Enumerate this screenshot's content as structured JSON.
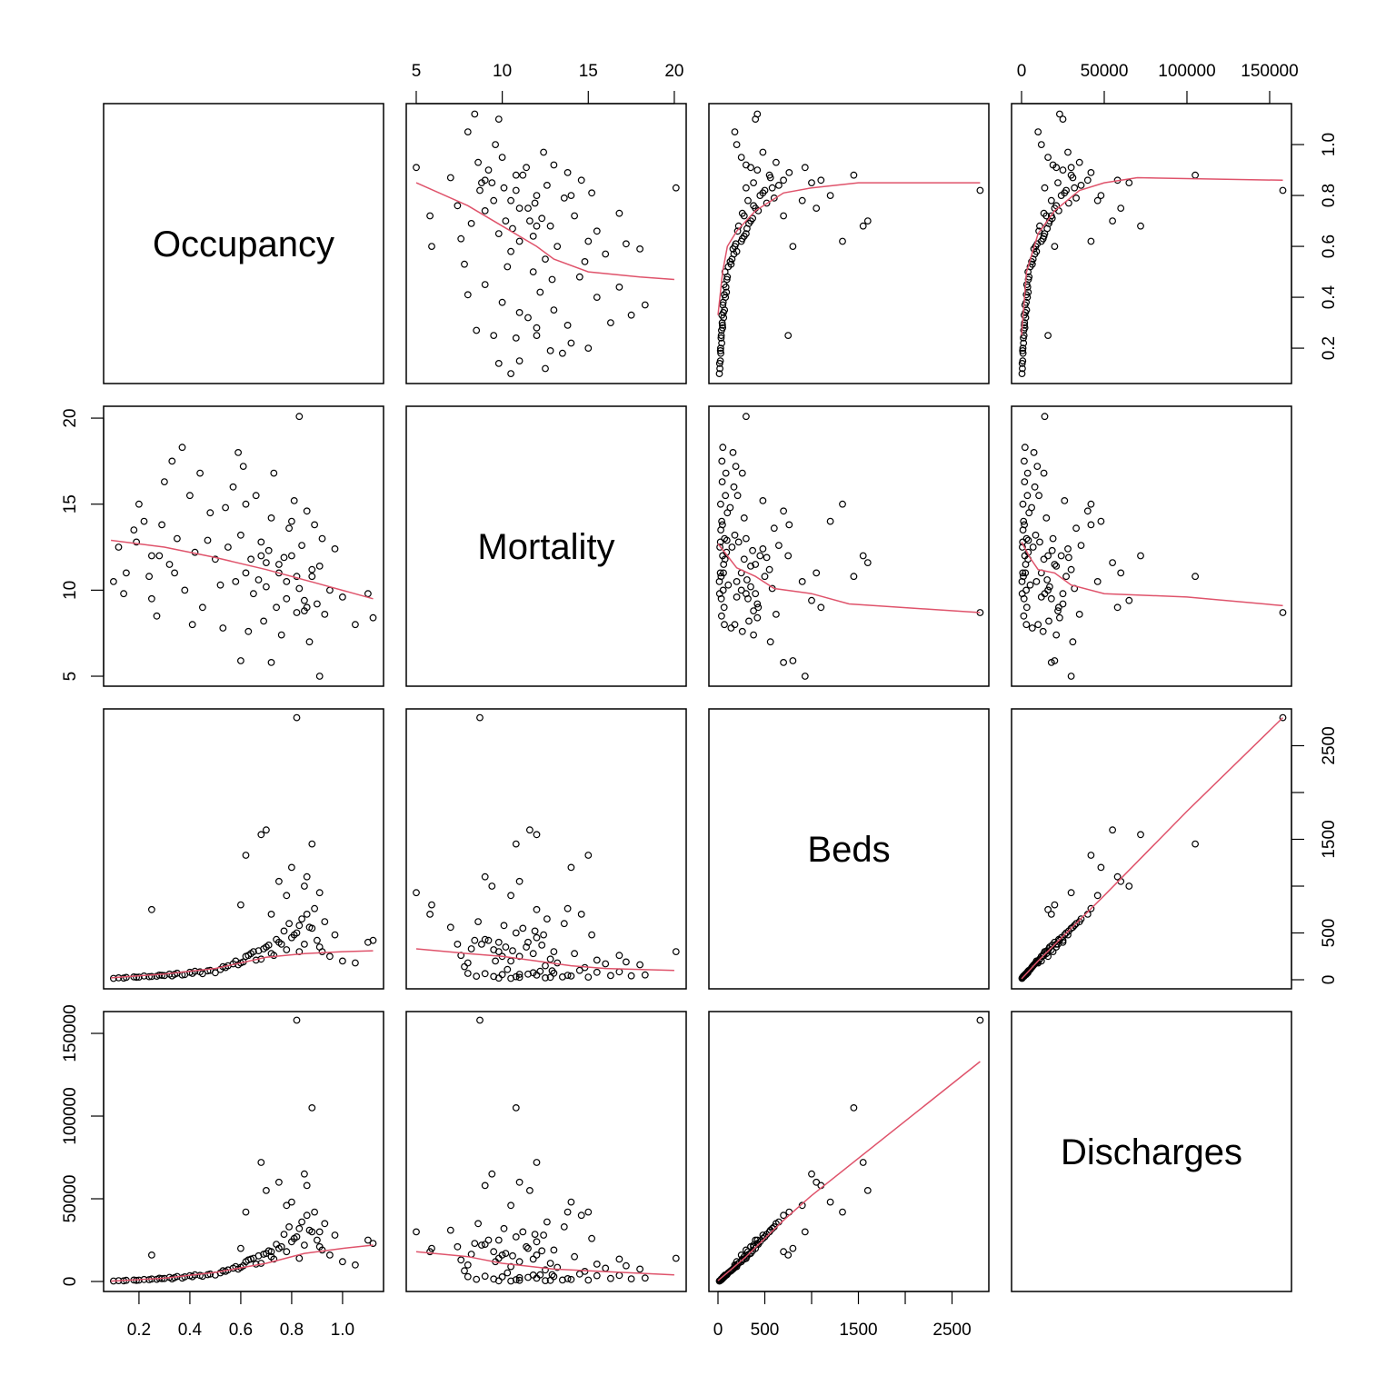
{
  "chart_data": {
    "type": "scatter",
    "title": "",
    "variables": [
      "Occupancy",
      "Mortality",
      "Beds",
      "Discharges"
    ],
    "ranges": [
      [
        0.061,
        1.161
      ],
      [
        4.42,
        20.69
      ],
      [
        -97,
        2893
      ],
      [
        -6044,
        163200
      ]
    ],
    "ticks": [
      {
        "values": [
          0.2,
          0.4,
          0.6,
          0.8,
          1.0
        ],
        "labels": [
          "0.2",
          "0.4",
          "0.6",
          "0.8",
          "1.0"
        ]
      },
      {
        "values": [
          5,
          10,
          15,
          20
        ],
        "labels": [
          "5",
          "10",
          "15",
          "20"
        ]
      },
      {
        "values": [
          0,
          500,
          1000,
          1500,
          2000,
          2500
        ],
        "labels": [
          "0",
          "500",
          "",
          "1500",
          "",
          "2500"
        ]
      },
      {
        "values": [
          0,
          50000,
          100000,
          150000
        ],
        "labels": [
          "0",
          "50000",
          "100000",
          "150000"
        ]
      }
    ],
    "point_color": "#000000",
    "smooth_color": "#DF536B",
    "records_columns": [
      "Occupancy",
      "Mortality",
      "Beds",
      "Discharges"
    ],
    "records": [
      [
        0.12,
        12.5,
        20,
        500
      ],
      [
        0.15,
        11.0,
        25,
        700
      ],
      [
        0.18,
        13.5,
        30,
        900
      ],
      [
        0.1,
        10.5,
        15,
        300
      ],
      [
        0.22,
        14.0,
        40,
        1200
      ],
      [
        0.25,
        9.5,
        35,
        1500
      ],
      [
        0.28,
        12.0,
        50,
        2000
      ],
      [
        0.3,
        16.3,
        45,
        1800
      ],
      [
        0.32,
        11.5,
        60,
        2500
      ],
      [
        0.35,
        13.0,
        70,
        3000
      ],
      [
        0.38,
        10.0,
        55,
        2800
      ],
      [
        0.4,
        15.5,
        80,
        3500
      ],
      [
        0.42,
        12.2,
        90,
        4000
      ],
      [
        0.45,
        9.0,
        65,
        3200
      ],
      [
        0.48,
        14.5,
        100,
        4500
      ],
      [
        0.5,
        11.8,
        75,
        3900
      ],
      [
        0.2,
        15.0,
        28,
        800
      ],
      [
        0.27,
        8.5,
        38,
        1300
      ],
      [
        0.33,
        17.5,
        42,
        1600
      ],
      [
        0.37,
        18.3,
        52,
        2100
      ],
      [
        0.14,
        9.8,
        18,
        400
      ],
      [
        0.19,
        12.8,
        26,
        650
      ],
      [
        0.24,
        10.8,
        33,
        1100
      ],
      [
        0.29,
        13.8,
        48,
        1700
      ],
      [
        0.34,
        11.0,
        58,
        2300
      ],
      [
        0.41,
        8.0,
        68,
        2900
      ],
      [
        0.44,
        16.8,
        85,
        3700
      ],
      [
        0.47,
        12.9,
        95,
        4100
      ],
      [
        0.52,
        10.3,
        110,
        5200
      ],
      [
        0.54,
        14.8,
        130,
        6100
      ],
      [
        0.55,
        12.5,
        150,
        7000
      ],
      [
        0.58,
        10.5,
        200,
        9000
      ],
      [
        0.6,
        13.2,
        180,
        8500
      ],
      [
        0.62,
        11.0,
        250,
        12000
      ],
      [
        0.65,
        9.8,
        300,
        14000
      ],
      [
        0.68,
        12.8,
        220,
        11000
      ],
      [
        0.7,
        10.2,
        350,
        17000
      ],
      [
        0.72,
        14.2,
        280,
        15000
      ],
      [
        0.75,
        11.5,
        400,
        20000
      ],
      [
        0.78,
        9.5,
        320,
        18000
      ],
      [
        0.8,
        12.0,
        450,
        24000
      ],
      [
        0.82,
        10.8,
        500,
        27000
      ],
      [
        0.85,
        8.8,
        380,
        22000
      ],
      [
        0.88,
        11.2,
        550,
        30000
      ],
      [
        0.9,
        9.2,
        420,
        25000
      ],
      [
        0.92,
        13.0,
        300,
        19000
      ],
      [
        0.95,
        10.0,
        250,
        16000
      ],
      [
        1.0,
        9.6,
        200,
        12000
      ],
      [
        1.05,
        8.0,
        180,
        10000
      ],
      [
        1.1,
        9.8,
        400,
        25000
      ],
      [
        1.12,
        8.4,
        420,
        23000
      ],
      [
        0.57,
        16.0,
        170,
        8000
      ],
      [
        0.63,
        7.6,
        260,
        13000
      ],
      [
        0.66,
        15.5,
        210,
        10500
      ],
      [
        0.69,
        8.2,
        330,
        16500
      ],
      [
        0.73,
        16.8,
        260,
        13500
      ],
      [
        0.76,
        7.4,
        380,
        21000
      ],
      [
        0.79,
        13.6,
        600,
        33000
      ],
      [
        0.81,
        15.2,
        480,
        26000
      ],
      [
        0.84,
        12.6,
        650,
        36000
      ],
      [
        0.86,
        14.6,
        700,
        40000
      ],
      [
        0.87,
        7.0,
        560,
        31000
      ],
      [
        0.89,
        13.8,
        760,
        42000
      ],
      [
        0.93,
        8.6,
        620,
        35000
      ],
      [
        0.97,
        12.4,
        480,
        28000
      ],
      [
        0.53,
        7.8,
        140,
        6500
      ],
      [
        0.59,
        18.0,
        160,
        7500
      ],
      [
        0.61,
        17.2,
        190,
        9500
      ],
      [
        0.64,
        11.8,
        280,
        13500
      ],
      [
        0.67,
        10.6,
        310,
        15500
      ],
      [
        0.71,
        12.3,
        370,
        18500
      ],
      [
        0.74,
        9.0,
        430,
        22500
      ],
      [
        0.77,
        11.9,
        520,
        28500
      ],
      [
        0.83,
        10.1,
        580,
        32000
      ],
      [
        0.91,
        11.4,
        350,
        21000
      ],
      [
        0.7,
        11.6,
        1600,
        55000
      ],
      [
        0.68,
        12.0,
        1550,
        72000
      ],
      [
        0.82,
        8.7,
        2800,
        158000
      ],
      [
        0.88,
        10.8,
        1450,
        105000
      ],
      [
        0.83,
        20.1,
        300,
        14000
      ],
      [
        0.91,
        5.0,
        930,
        30000
      ],
      [
        0.62,
        15.0,
        1330,
        42000
      ],
      [
        0.75,
        11.0,
        1050,
        60000
      ],
      [
        0.85,
        9.4,
        1000,
        65000
      ],
      [
        0.8,
        14.0,
        1200,
        48000
      ],
      [
        0.6,
        5.9,
        800,
        20000
      ],
      [
        0.72,
        5.8,
        700,
        18000
      ],
      [
        0.25,
        12.0,
        750,
        16000
      ],
      [
        0.78,
        10.5,
        900,
        46000
      ],
      [
        0.86,
        9.0,
        1100,
        58000
      ]
    ],
    "smooths": [
      {
        "x": "Mortality",
        "y": "Occupancy",
        "points": [
          [
            5,
            0.85
          ],
          [
            8,
            0.76
          ],
          [
            10,
            0.68
          ],
          [
            12,
            0.6
          ],
          [
            13,
            0.55
          ],
          [
            15,
            0.5
          ],
          [
            18,
            0.48
          ],
          [
            20,
            0.47
          ]
        ]
      },
      {
        "x": "Beds",
        "y": "Occupancy",
        "points": [
          [
            0,
            0.33
          ],
          [
            50,
            0.5
          ],
          [
            100,
            0.6
          ],
          [
            200,
            0.66
          ],
          [
            400,
            0.74
          ],
          [
            700,
            0.81
          ],
          [
            1000,
            0.83
          ],
          [
            1500,
            0.85
          ],
          [
            2800,
            0.85
          ]
        ]
      },
      {
        "x": "Discharges",
        "y": "Occupancy",
        "points": [
          [
            0,
            0.25
          ],
          [
            3000,
            0.5
          ],
          [
            10000,
            0.65
          ],
          [
            20000,
            0.74
          ],
          [
            35000,
            0.82
          ],
          [
            50000,
            0.85
          ],
          [
            70000,
            0.87
          ],
          [
            158000,
            0.86
          ]
        ]
      },
      {
        "x": "Occupancy",
        "y": "Mortality",
        "points": [
          [
            0.09,
            12.9
          ],
          [
            0.3,
            12.5
          ],
          [
            0.5,
            11.9
          ],
          [
            0.7,
            11.2
          ],
          [
            0.9,
            10.4
          ],
          [
            1.12,
            9.5
          ]
        ]
      },
      {
        "x": "Beds",
        "y": "Mortality",
        "points": [
          [
            0,
            12.7
          ],
          [
            100,
            12.0
          ],
          [
            200,
            11.3
          ],
          [
            400,
            10.8
          ],
          [
            600,
            10.1
          ],
          [
            1000,
            9.8
          ],
          [
            1400,
            9.2
          ],
          [
            2800,
            8.7
          ]
        ]
      },
      {
        "x": "Discharges",
        "y": "Mortality",
        "points": [
          [
            0,
            12.8
          ],
          [
            5000,
            11.9
          ],
          [
            10000,
            11.2
          ],
          [
            20000,
            11.0
          ],
          [
            30000,
            10.3
          ],
          [
            50000,
            9.8
          ],
          [
            100000,
            9.6
          ],
          [
            158000,
            9.1
          ]
        ]
      },
      {
        "x": "Occupancy",
        "y": "Beds",
        "points": [
          [
            0.09,
            20
          ],
          [
            0.3,
            60
          ],
          [
            0.5,
            120
          ],
          [
            0.7,
            240
          ],
          [
            0.85,
            280
          ],
          [
            1.0,
            300
          ],
          [
            1.12,
            310
          ]
        ]
      },
      {
        "x": "Mortality",
        "y": "Beds",
        "points": [
          [
            5,
            330
          ],
          [
            8,
            280
          ],
          [
            10,
            250
          ],
          [
            12,
            200
          ],
          [
            14,
            150
          ],
          [
            16,
            120
          ],
          [
            20,
            100
          ]
        ]
      },
      {
        "x": "Discharges",
        "y": "Beds",
        "points": [
          [
            0,
            10
          ],
          [
            10000,
            200
          ],
          [
            30000,
            550
          ],
          [
            50000,
            900
          ],
          [
            100000,
            1800
          ],
          [
            158000,
            2800
          ]
        ]
      },
      {
        "x": "Occupancy",
        "y": "Discharges",
        "points": [
          [
            0.09,
            200
          ],
          [
            0.3,
            2000
          ],
          [
            0.5,
            5500
          ],
          [
            0.7,
            11000
          ],
          [
            0.85,
            17000
          ],
          [
            1.0,
            20000
          ],
          [
            1.12,
            22000
          ]
        ]
      },
      {
        "x": "Mortality",
        "y": "Discharges",
        "points": [
          [
            5,
            18000
          ],
          [
            8,
            15000
          ],
          [
            10,
            11000
          ],
          [
            13,
            7500
          ],
          [
            16,
            6000
          ],
          [
            20,
            4000
          ]
        ]
      },
      {
        "x": "Beds",
        "y": "Discharges",
        "points": [
          [
            0,
            500
          ],
          [
            300,
            15000
          ],
          [
            700,
            37000
          ],
          [
            1000,
            52000
          ],
          [
            2800,
            133000
          ]
        ]
      }
    ]
  }
}
